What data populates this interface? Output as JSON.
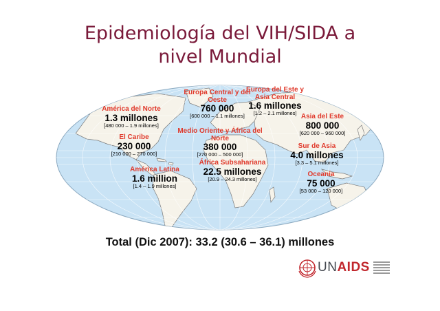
{
  "title_line1": "Epidemiología del VIH/SIDA a",
  "title_line2": "nivel Mundial",
  "colors": {
    "title": "#7a1a3a",
    "ocean": "#c9e3f5",
    "land": "#f6f3ea",
    "border": "#7a7a7a",
    "region_name": "#e0392b",
    "logo_red": "#c1272d"
  },
  "regions": [
    {
      "name": "América del Norte",
      "value": "1.3 millones",
      "range": "[480 000 – 1.9 millones]"
    },
    {
      "name": "El Caribe",
      "value": "230 000",
      "range": "[210 000 – 270 000]"
    },
    {
      "name": "América Latina",
      "value": "1.6 million",
      "range": "[1.4 – 1.9 millones]"
    },
    {
      "name": "Europa Central y del Oeste",
      "value": "760 000",
      "range": "[600 000 – 1.1 millones]"
    },
    {
      "name": "Europa del Este y Asia Central",
      "value": "1.6 millones",
      "range": "[1.2 – 2.1 millones]"
    },
    {
      "name": "Medio Oriente y África del Norte",
      "value": "380 000",
      "range": "[270 000 – 500 000]"
    },
    {
      "name": "África Subsahariana",
      "value": "22.5 millones",
      "range": "[20.9 – 24.3 millones]"
    },
    {
      "name": "Asia del Este",
      "value": "800 000",
      "range": "[620 000 – 960 000]"
    },
    {
      "name": "Sur de Asia",
      "value": "4.0 millones",
      "range": "[3.3 – 5.1 millones]"
    },
    {
      "name": "Oceanía",
      "value": "75 000",
      "range": "[53 000 – 120 000]"
    }
  ],
  "total": "Total (Dic 2007): 33.2 (30.6 – 36.1) millones",
  "logo": {
    "prefix": "UN",
    "suffix": "AIDS"
  }
}
